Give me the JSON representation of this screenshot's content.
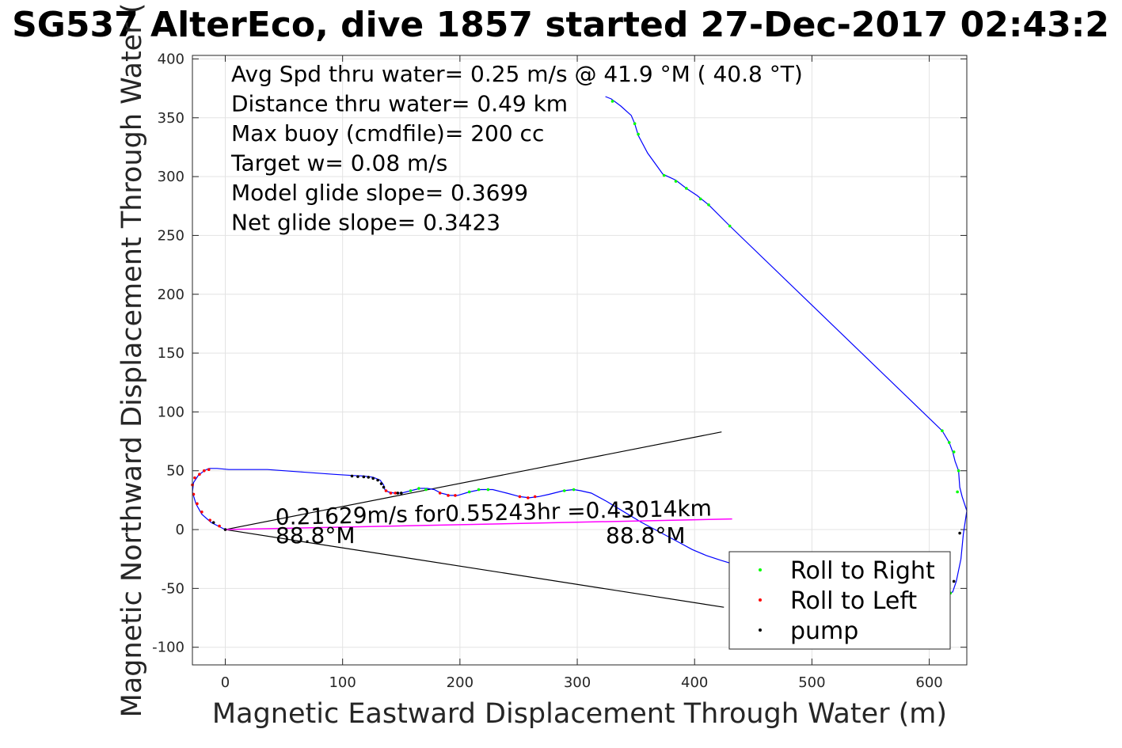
{
  "chart_data": {
    "type": "line",
    "title": "SG537 AlterEco, dive 1857 started 27-Dec-2017 02:43:2",
    "xlabel": "Magnetic Eastward Displacement Through Water (m)",
    "ylabel": "Magnetic Northward Displacement Through Water (",
    "xlim": [
      -28,
      632
    ],
    "ylim": [
      -115,
      403
    ],
    "xticks": [
      0,
      100,
      200,
      300,
      400,
      500,
      600
    ],
    "yticks": [
      -100,
      -50,
      0,
      50,
      100,
      150,
      200,
      250,
      300,
      350,
      400
    ],
    "grid": true,
    "annotations": [
      "Avg Spd thru water=  0.25 m/s @  41.9 °M ( 40.8 °T)",
      "Distance thru water=  0.49 km",
      "Max buoy (cmdfile)= 200 cc",
      "Target w= 0.08 m/s",
      "Model glide slope= 0.3699",
      "Net glide slope= 0.3423"
    ],
    "current_label": "0.21629m/s for0.55243hr =0.43014km",
    "heading_label_1": "88.8°M",
    "heading_label_2": "88.8°M",
    "legend": {
      "location": "bottom-right",
      "entries": [
        {
          "name": "Roll to Right",
          "color": "#00ff00"
        },
        {
          "name": "Roll to Left",
          "color": "#ff0000"
        },
        {
          "name": "pump",
          "color": "#000000"
        }
      ]
    },
    "track_color": "#0000ff",
    "current_color": "#ff00ff",
    "cone_color": "#000000",
    "track": [
      [
        0,
        0
      ],
      [
        -12,
        6
      ],
      [
        -20,
        13
      ],
      [
        -25,
        22
      ],
      [
        -28,
        32
      ],
      [
        -27,
        40
      ],
      [
        -23,
        46
      ],
      [
        -18,
        50
      ],
      [
        -14,
        52
      ],
      [
        -7,
        52
      ],
      [
        3,
        51
      ],
      [
        13,
        51
      ],
      [
        23,
        51
      ],
      [
        36,
        51
      ],
      [
        50,
        50
      ],
      [
        64,
        49
      ],
      [
        78,
        48
      ],
      [
        92,
        47
      ],
      [
        108,
        46
      ],
      [
        118,
        45.5
      ],
      [
        126,
        44.5
      ],
      [
        132,
        42
      ],
      [
        135,
        38
      ],
      [
        136,
        34
      ],
      [
        139,
        32
      ],
      [
        144,
        31
      ],
      [
        150,
        31
      ],
      [
        158,
        33
      ],
      [
        166,
        35
      ],
      [
        172,
        35
      ],
      [
        178,
        34
      ],
      [
        184,
        31
      ],
      [
        192,
        29
      ],
      [
        198,
        29
      ],
      [
        208,
        32
      ],
      [
        218,
        34
      ],
      [
        228,
        34
      ],
      [
        240,
        31
      ],
      [
        251,
        28
      ],
      [
        259,
        27
      ],
      [
        267,
        28
      ],
      [
        276,
        30
      ],
      [
        288,
        33
      ],
      [
        297,
        34
      ],
      [
        303,
        33
      ],
      [
        312,
        31
      ],
      [
        325,
        24
      ],
      [
        340,
        15
      ],
      [
        355,
        6
      ],
      [
        370,
        -2
      ],
      [
        385,
        -10
      ],
      [
        398,
        -17
      ],
      [
        410,
        -22
      ],
      [
        422,
        -26
      ],
      [
        435,
        -30
      ],
      [
        448,
        -34
      ],
      [
        465,
        -39
      ],
      [
        480,
        -43
      ],
      [
        498,
        -48
      ],
      [
        515,
        -52
      ],
      [
        535,
        -54
      ],
      [
        555,
        -56
      ],
      [
        575,
        -56
      ],
      [
        598,
        -57
      ],
      [
        613,
        -56
      ],
      [
        620,
        -53
      ],
      [
        623,
        -44
      ],
      [
        627,
        -25
      ],
      [
        629,
        -4
      ],
      [
        632,
        16
      ],
      [
        628,
        28
      ],
      [
        626,
        36
      ],
      [
        625,
        50
      ],
      [
        622,
        58
      ],
      [
        620,
        66
      ],
      [
        617,
        74
      ],
      [
        611,
        84
      ],
      [
        430,
        258
      ],
      [
        412,
        276
      ],
      [
        402,
        284
      ],
      [
        393,
        290
      ],
      [
        384,
        297
      ],
      [
        373,
        302
      ],
      [
        360,
        320
      ],
      [
        352,
        335
      ],
      [
        349,
        345
      ],
      [
        346,
        352
      ],
      [
        337,
        360
      ],
      [
        329,
        366
      ],
      [
        324,
        368
      ]
    ],
    "roll_right_points": [
      [
        611,
        84
      ],
      [
        617,
        74
      ],
      [
        621,
        66
      ],
      [
        625,
        50
      ],
      [
        624,
        32
      ],
      [
        618,
        -54
      ],
      [
        430,
        258
      ],
      [
        412,
        276
      ],
      [
        405,
        281
      ],
      [
        393,
        290
      ],
      [
        384,
        296
      ],
      [
        374,
        301
      ],
      [
        352,
        336
      ],
      [
        349,
        345
      ],
      [
        330,
        364
      ],
      [
        158,
        33
      ],
      [
        165,
        35
      ],
      [
        171,
        34
      ],
      [
        208,
        32
      ],
      [
        216,
        34
      ],
      [
        224,
        34
      ],
      [
        289,
        33
      ],
      [
        297,
        34
      ]
    ],
    "roll_left_points": [
      [
        -5,
        3
      ],
      [
        -13,
        8
      ],
      [
        -20,
        15
      ],
      [
        -24,
        22
      ],
      [
        -27,
        30
      ],
      [
        -28,
        38
      ],
      [
        -26,
        44
      ],
      [
        -22,
        47
      ],
      [
        -18,
        50
      ],
      [
        -14,
        51
      ],
      [
        137,
        33
      ],
      [
        141,
        31
      ],
      [
        145,
        31
      ],
      [
        183,
        31
      ],
      [
        190,
        29
      ],
      [
        196,
        29
      ],
      [
        251,
        28
      ],
      [
        258,
        27
      ],
      [
        264,
        28
      ]
    ],
    "pump_points": [
      [
        0,
        0
      ],
      [
        -10,
        6
      ],
      [
        108,
        45.5
      ],
      [
        113,
        45
      ],
      [
        118,
        44.8
      ],
      [
        122,
        44.5
      ],
      [
        126,
        43.5
      ],
      [
        130,
        42
      ],
      [
        133,
        39
      ],
      [
        135,
        36
      ],
      [
        147,
        31
      ],
      [
        150,
        31
      ],
      [
        626,
        -3
      ],
      [
        621,
        -44
      ]
    ],
    "current_line": [
      [
        0,
        0
      ],
      [
        432,
        9
      ]
    ],
    "cone_upper": [
      [
        0,
        0
      ],
      [
        423,
        83
      ]
    ],
    "cone_lower": [
      [
        0,
        0
      ],
      [
        425,
        -66
      ]
    ]
  }
}
